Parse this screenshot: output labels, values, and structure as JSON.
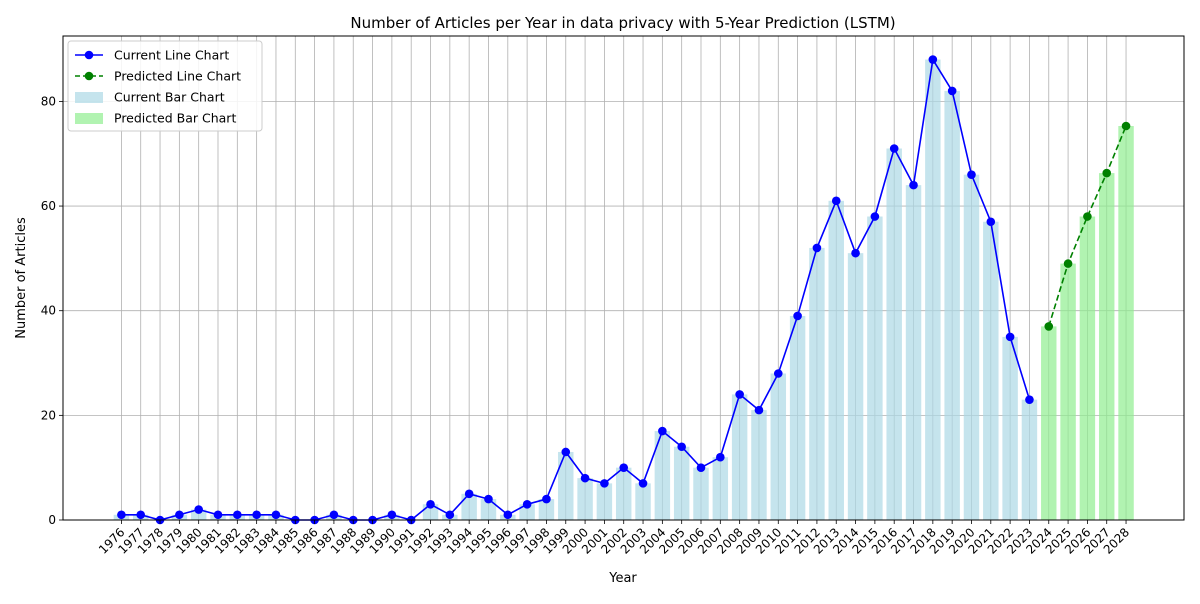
{
  "chart_data": {
    "type": "bar",
    "title": "Number of Articles per Year in data privacy with 5-Year Prediction (LSTM)",
    "xlabel": "Year",
    "ylabel": "Number of Articles",
    "ylim": [
      0,
      92.5
    ],
    "yticks": [
      0,
      20,
      40,
      60,
      80
    ],
    "grid": true,
    "legend_position": "top-left",
    "categories": [
      "1976",
      "1977",
      "1978",
      "1979",
      "1980",
      "1981",
      "1982",
      "1983",
      "1984",
      "1985",
      "1986",
      "1987",
      "1988",
      "1989",
      "1990",
      "1991",
      "1992",
      "1993",
      "1994",
      "1995",
      "1996",
      "1997",
      "1998",
      "1999",
      "2000",
      "2001",
      "2002",
      "2003",
      "2004",
      "2005",
      "2006",
      "2007",
      "2008",
      "2009",
      "2010",
      "2011",
      "2012",
      "2013",
      "2014",
      "2015",
      "2016",
      "2017",
      "2018",
      "2019",
      "2020",
      "2021",
      "2022",
      "2023",
      "2024",
      "2025",
      "2026",
      "2027",
      "2028"
    ],
    "series": [
      {
        "name": "Current Line Chart",
        "kind": "line",
        "color": "#0000ff",
        "x": [
          "1976",
          "1977",
          "1978",
          "1979",
          "1980",
          "1981",
          "1982",
          "1983",
          "1984",
          "1985",
          "1986",
          "1987",
          "1988",
          "1989",
          "1990",
          "1991",
          "1992",
          "1993",
          "1994",
          "1995",
          "1996",
          "1997",
          "1998",
          "1999",
          "2000",
          "2001",
          "2002",
          "2003",
          "2004",
          "2005",
          "2006",
          "2007",
          "2008",
          "2009",
          "2010",
          "2011",
          "2012",
          "2013",
          "2014",
          "2015",
          "2016",
          "2017",
          "2018",
          "2019",
          "2020",
          "2021",
          "2022",
          "2023"
        ],
        "values": [
          1,
          1,
          0,
          1,
          2,
          1,
          1,
          1,
          1,
          0,
          0,
          1,
          0,
          0,
          1,
          0,
          3,
          1,
          5,
          4,
          1,
          3,
          4,
          13,
          8,
          7,
          10,
          7,
          17,
          14,
          10,
          12,
          24,
          21,
          28,
          39,
          52,
          61,
          51,
          58,
          71,
          64,
          88,
          82,
          66,
          57,
          35,
          23
        ]
      },
      {
        "name": "Predicted Line Chart",
        "kind": "line-dashed",
        "color": "#008000",
        "x": [
          "2024",
          "2025",
          "2026",
          "2027",
          "2028"
        ],
        "values": [
          37,
          49,
          58,
          66.3,
          75.3
        ]
      },
      {
        "name": "Current Bar Chart",
        "kind": "bar",
        "color": "#add8e6",
        "x": [
          "1976",
          "1977",
          "1978",
          "1979",
          "1980",
          "1981",
          "1982",
          "1983",
          "1984",
          "1985",
          "1986",
          "1987",
          "1988",
          "1989",
          "1990",
          "1991",
          "1992",
          "1993",
          "1994",
          "1995",
          "1996",
          "1997",
          "1998",
          "1999",
          "2000",
          "2001",
          "2002",
          "2003",
          "2004",
          "2005",
          "2006",
          "2007",
          "2008",
          "2009",
          "2010",
          "2011",
          "2012",
          "2013",
          "2014",
          "2015",
          "2016",
          "2017",
          "2018",
          "2019",
          "2020",
          "2021",
          "2022",
          "2023"
        ],
        "values": [
          1,
          1,
          0,
          1,
          2,
          1,
          1,
          1,
          1,
          0,
          0,
          1,
          0,
          0,
          1,
          0,
          3,
          1,
          5,
          4,
          1,
          3,
          4,
          13,
          8,
          7,
          10,
          7,
          17,
          14,
          10,
          12,
          24,
          21,
          28,
          39,
          52,
          61,
          51,
          58,
          71,
          64,
          88,
          82,
          66,
          57,
          35,
          23
        ]
      },
      {
        "name": "Predicted Bar Chart",
        "kind": "bar",
        "color": "#90ee90",
        "x": [
          "2024",
          "2025",
          "2026",
          "2027",
          "2028"
        ],
        "values": [
          37,
          49,
          58,
          66.3,
          75.3
        ]
      }
    ]
  }
}
